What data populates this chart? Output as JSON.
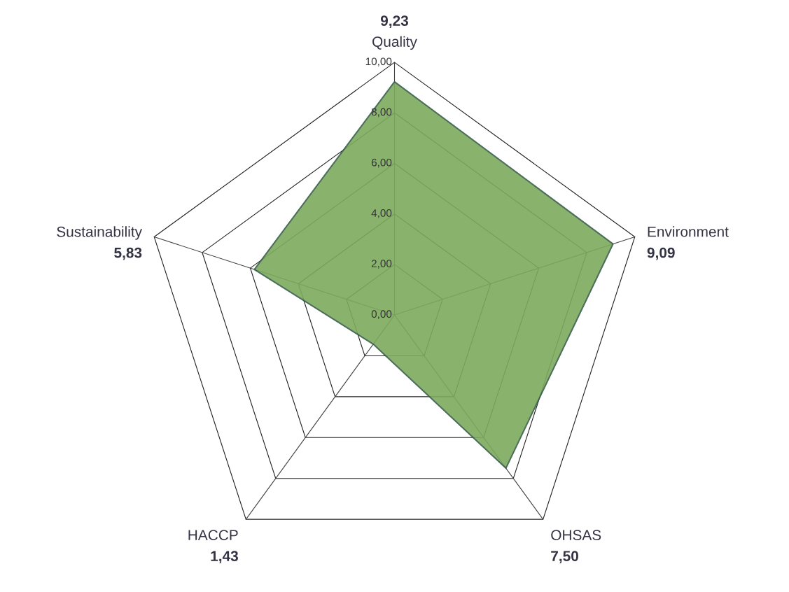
{
  "chart_data": {
    "type": "radar",
    "categories": [
      "Quality",
      "Environment",
      "OHSAS",
      "HACCP",
      "Sustainability"
    ],
    "series": [
      {
        "color": "#7dab5e",
        "values": [
          9.23,
          9.09,
          7.5,
          1.43,
          5.83
        ]
      }
    ],
    "value_labels": [
      "9,23",
      "9,09",
      "7,50",
      "1,43",
      "5,83"
    ],
    "ylim": [
      0,
      10
    ],
    "yticks": [
      {
        "value": 0,
        "label": "0,00"
      },
      {
        "value": 2,
        "label": "2,00"
      },
      {
        "value": 4,
        "label": "4,00"
      },
      {
        "value": 6,
        "label": "6,00"
      },
      {
        "value": 8,
        "label": "8,00"
      },
      {
        "value": 10,
        "label": "10,00"
      }
    ],
    "grid": true
  }
}
